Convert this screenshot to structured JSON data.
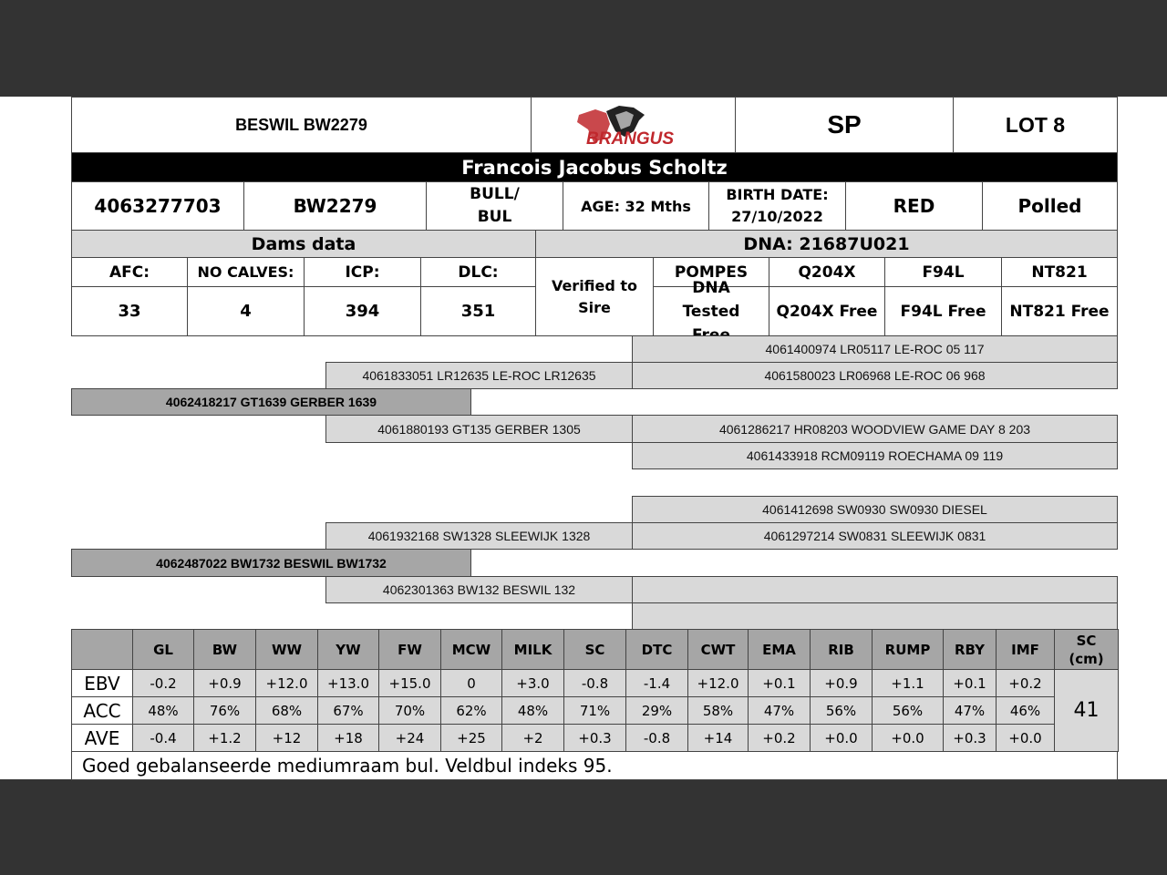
{
  "header": {
    "animal_name": "BESWIL BW2279",
    "logo_text": "BRANGUS",
    "code": "SP",
    "lot": "LOT 8"
  },
  "owner": "Francois Jacobus Scholtz",
  "details": {
    "id": "4063277703",
    "tag": "BW2279",
    "sex_line1": "BULL/",
    "sex_line2": "BUL",
    "age": "AGE: 32 Mths",
    "birth_label": "BIRTH DATE:",
    "birth_date": "27/10/2022",
    "color": "RED",
    "horn": "Polled"
  },
  "dams": {
    "title": "Dams data",
    "headers": [
      "AFC:",
      "NO CALVES:",
      "ICP:",
      "DLC:"
    ],
    "values": [
      "33",
      "4",
      "394",
      "351"
    ]
  },
  "dna": {
    "title": "DNA: 21687U021",
    "verified_line1": "Verified to",
    "verified_line2": "Sire",
    "headers": [
      "POMPES",
      "Q204X",
      "F94L",
      "NT821"
    ],
    "values": [
      "DNA Tested Free",
      "Q204X Free",
      "F94L Free",
      "NT821 Free"
    ]
  },
  "pedigree": {
    "sire": "4062418217 GT1639 GERBER 1639",
    "sire_sire": "4061833051 LR12635 LE-ROC LR12635",
    "sire_dam": "4061880193 GT135 GERBER 1305",
    "sss": "4061400974 LR05117 LE-ROC 05 117",
    "ssd": "4061580023 LR06968 LE-ROC 06 968",
    "sds": "4061286217 HR08203 WOODVIEW GAME DAY 8 203",
    "sdd": "4061433918 RCM09119 ROECHAMA 09 119",
    "dam": "4062487022 BW1732 BESWIL BW1732",
    "dam_sire": "4061932168 SW1328 SLEEWIJK 1328",
    "dam_dam": "4062301363 BW132 BESWIL 132",
    "dss": "4061412698 SW0930 SW0930 DIESEL",
    "dsd": "4061297214 SW0831 SLEEWIJK 0831",
    "dds": "",
    "ddd": ""
  },
  "ebv_table": {
    "columns": [
      "GL",
      "BW",
      "WW",
      "YW",
      "FW",
      "MCW",
      "MILK",
      "SC",
      "DTC",
      "CWT",
      "EMA",
      "RIB",
      "RUMP",
      "RBY",
      "IMF"
    ],
    "sc_cm_header": "SC (cm)",
    "sc_cm_value": "41",
    "rows": [
      {
        "label": "EBV",
        "values": [
          "-0.2",
          "+0.9",
          "+12.0",
          "+13.0",
          "+15.0",
          "0",
          "+3.0",
          "-0.8",
          "-1.4",
          "+12.0",
          "+0.1",
          "+0.9",
          "+1.1",
          "+0.1",
          "+0.2"
        ]
      },
      {
        "label": "ACC",
        "values": [
          "48%",
          "76%",
          "68%",
          "67%",
          "70%",
          "62%",
          "48%",
          "71%",
          "29%",
          "58%",
          "47%",
          "56%",
          "56%",
          "47%",
          "46%"
        ]
      },
      {
        "label": "AVE",
        "values": [
          "-0.4",
          "+1.2",
          "+12",
          "+18",
          "+24",
          "+25",
          "+2",
          "+0.3",
          "-0.8",
          "+14",
          "+0.2",
          "+0.0",
          "+0.0",
          "+0.3",
          "+0.0"
        ]
      }
    ]
  },
  "comment": "Goed gebalanseerde mediumraam bul. Veldbul indeks 95.",
  "colors": {
    "band": "#333333",
    "light_grey": "#d9d9d9",
    "dark_grey": "#a6a6a6",
    "logo_red": "#c0282d"
  }
}
